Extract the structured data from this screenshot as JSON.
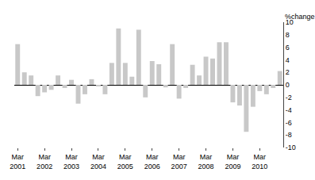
{
  "chart_data": {
    "type": "bar",
    "ylabel": "%change",
    "categories": [
      "Mar\n2001",
      null,
      null,
      null,
      "Mar\n2002",
      null,
      null,
      null,
      "Mar\n2003",
      null,
      null,
      null,
      "Mar\n2004",
      null,
      null,
      null,
      "Mar\n2005",
      null,
      null,
      null,
      "Mar\n2006",
      null,
      null,
      null,
      "Mar\n2007",
      null,
      null,
      null,
      "Mar\n2008",
      null,
      null,
      null,
      "Mar\n2009",
      null,
      null,
      null,
      "Mar\n2010",
      null,
      null,
      null
    ],
    "values": [
      6.5,
      2.0,
      1.5,
      -1.8,
      -1.2,
      -0.8,
      1.5,
      -0.5,
      0.8,
      -3.0,
      -1.5,
      0.9,
      -0.2,
      -1.5,
      3.5,
      9.0,
      3.5,
      1.3,
      8.8,
      -2.0,
      3.8,
      3.3,
      -0.4,
      6.5,
      -2.2,
      -0.5,
      3.2,
      1.5,
      4.5,
      4.2,
      6.8,
      6.8,
      -2.8,
      -3.3,
      -7.5,
      -3.5,
      -1.0,
      -1.5,
      -0.5,
      2.2
    ],
    "color": "#c8c8c8",
    "ylim": [
      -10,
      10
    ],
    "yticks": [
      -10,
      -8,
      -6,
      -4,
      -2,
      0,
      2,
      4,
      6,
      8,
      10
    ],
    "grid": false
  }
}
